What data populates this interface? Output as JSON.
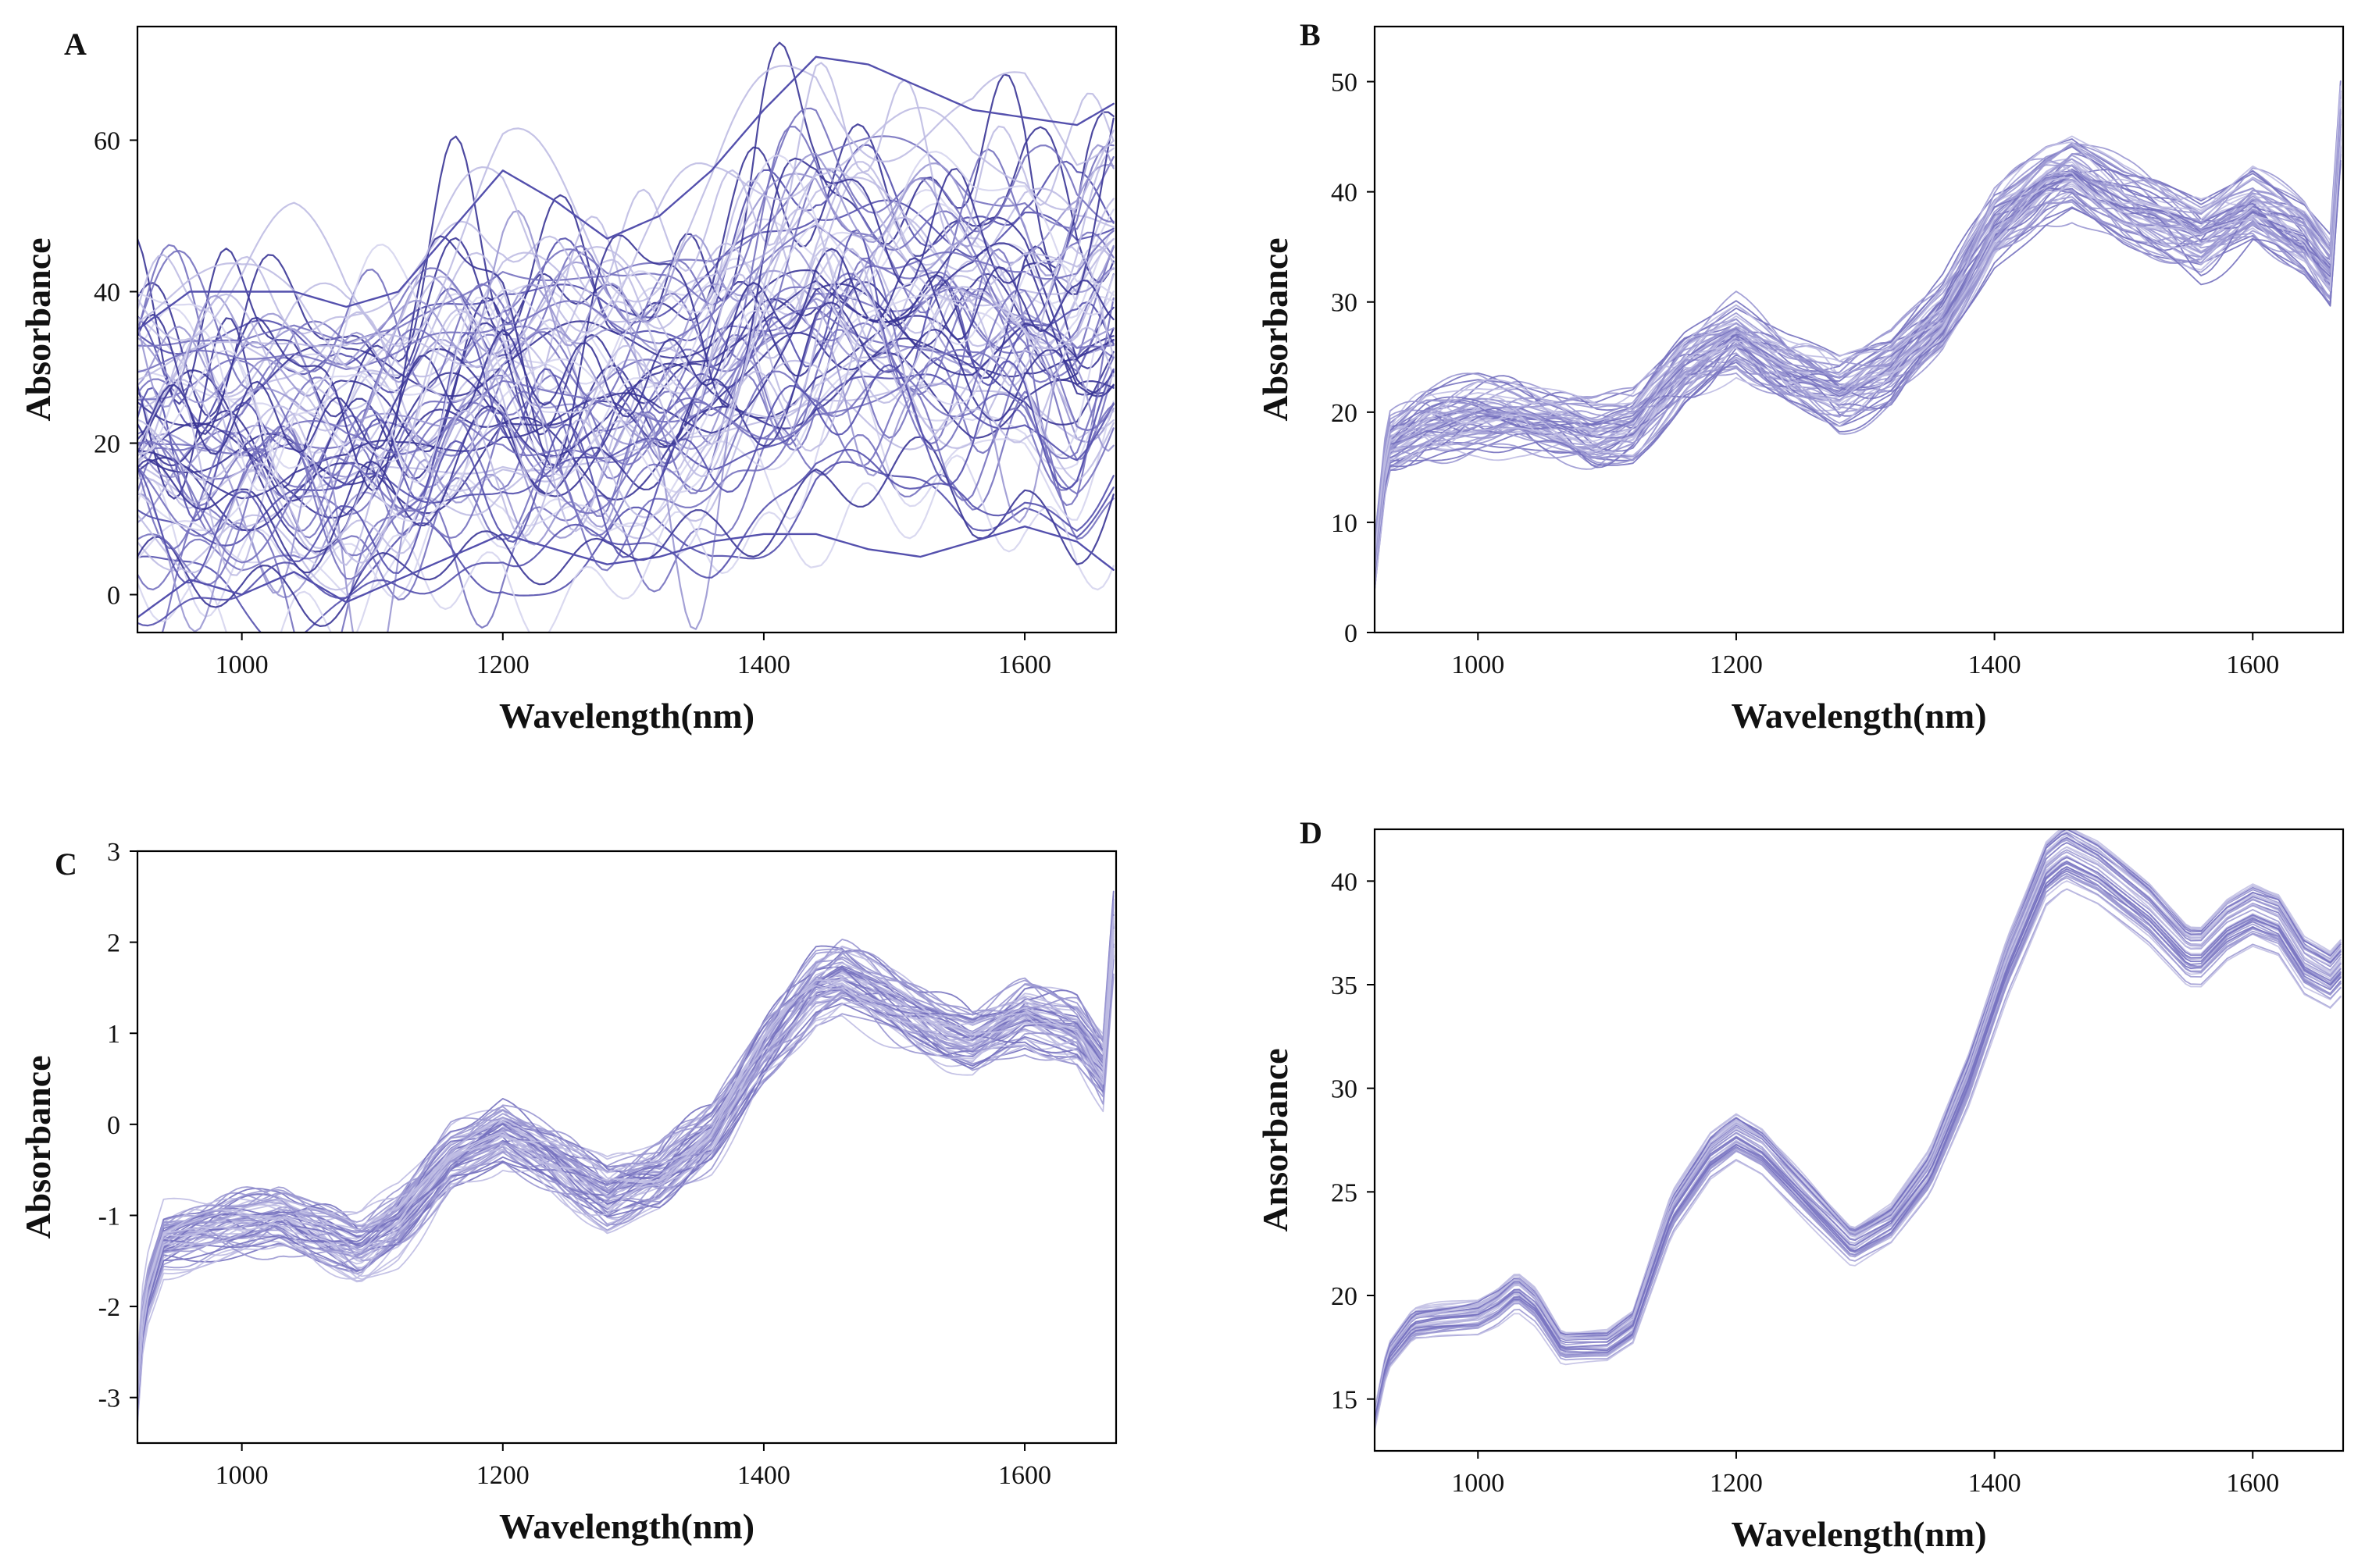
{
  "figure": {
    "line_colors": [
      "#3a3596",
      "#5450ad",
      "#7571bf",
      "#9a97d1",
      "#bfbde3",
      "#d6d5ee"
    ],
    "mean_color": "#8b87cb"
  },
  "chart_data": [
    {
      "type": "line",
      "panel": "A",
      "title": "",
      "xlabel": "Wavelength(nm)",
      "ylabel": "Absorbance",
      "xlim": [
        920,
        1670
      ],
      "ylim": [
        -5,
        75
      ],
      "xticks": [
        1000,
        1200,
        1400,
        1600
      ],
      "yticks": [
        0,
        20,
        40,
        60
      ],
      "x": [
        920,
        960,
        1000,
        1040,
        1080,
        1120,
        1160,
        1200,
        1240,
        1280,
        1320,
        1360,
        1400,
        1440,
        1480,
        1520,
        1560,
        1600,
        1640,
        1670
      ],
      "mean_curve": [
        20,
        20,
        19,
        20,
        18,
        20,
        24,
        28,
        26,
        24,
        25,
        28,
        34,
        40,
        38,
        36,
        34,
        37,
        33,
        38
      ],
      "spread": 17,
      "series_count": 70,
      "series_examples": [
        {
          "name": "top spectrum",
          "values": [
            35,
            40,
            40,
            40,
            38,
            40,
            48,
            56,
            52,
            47,
            50,
            56,
            64,
            71,
            70,
            67,
            64,
            63,
            62,
            65
          ]
        },
        {
          "name": "bottom spectrum",
          "values": [
            -3,
            2,
            0,
            3,
            -1,
            2,
            5,
            8,
            6,
            4,
            5,
            7,
            8,
            8,
            6,
            5,
            7,
            9,
            7,
            3
          ]
        }
      ]
    },
    {
      "type": "line",
      "panel": "B",
      "title": "",
      "xlabel": "Wavelength(nm)",
      "ylabel": "Absorbance",
      "xlim": [
        920,
        1670
      ],
      "ylim": [
        0,
        55
      ],
      "xticks": [
        1000,
        1200,
        1400,
        1600
      ],
      "yticks": [
        0,
        10,
        20,
        30,
        40,
        50
      ],
      "x": [
        920,
        930,
        960,
        1000,
        1030,
        1060,
        1090,
        1120,
        1160,
        1200,
        1240,
        1280,
        1320,
        1360,
        1400,
        1440,
        1460,
        1500,
        1540,
        1560,
        1600,
        1640,
        1660,
        1670
      ],
      "mean_curve": [
        6,
        17,
        19,
        20,
        20,
        19,
        18,
        19,
        24,
        27,
        24,
        22,
        24,
        29,
        37,
        41,
        42,
        39,
        37,
        36,
        39,
        36,
        33,
        50
      ],
      "spread": 2.5,
      "series_count": 60
    },
    {
      "type": "line",
      "panel": "C",
      "title": "",
      "xlabel": "Wavelength(nm)",
      "ylabel": "Absorbance",
      "xlim": [
        920,
        1670
      ],
      "ylim": [
        -3.5,
        3
      ],
      "xticks": [
        1000,
        1200,
        1400,
        1600
      ],
      "yticks": [
        -3,
        -2,
        -1,
        0,
        1,
        2,
        3
      ],
      "x": [
        920,
        925,
        940,
        970,
        1000,
        1030,
        1060,
        1090,
        1120,
        1160,
        1200,
        1240,
        1280,
        1320,
        1360,
        1400,
        1440,
        1460,
        1500,
        1540,
        1560,
        1600,
        1640,
        1660,
        1670
      ],
      "mean_curve": [
        -3.0,
        -2.0,
        -1.3,
        -1.2,
        -1.1,
        -1.0,
        -1.2,
        -1.4,
        -1.1,
        -0.4,
        -0.1,
        -0.4,
        -0.8,
        -0.6,
        -0.1,
        0.8,
        1.5,
        1.6,
        1.3,
        1.0,
        0.9,
        1.2,
        1.0,
        0.6,
        2.5
      ],
      "spread": 0.3,
      "series_count": 60
    },
    {
      "type": "line",
      "panel": "D",
      "title": "",
      "xlabel": "Wavelength(nm)",
      "ylabel": "Ansorbance",
      "xlim": [
        920,
        1670
      ],
      "ylim": [
        12.5,
        42.5
      ],
      "xticks": [
        1000,
        1200,
        1400,
        1600
      ],
      "yticks": [
        15,
        20,
        25,
        30,
        35,
        40
      ],
      "x": [
        920,
        930,
        950,
        970,
        1000,
        1015,
        1030,
        1045,
        1065,
        1100,
        1120,
        1150,
        1180,
        1200,
        1220,
        1250,
        1290,
        1320,
        1350,
        1380,
        1410,
        1440,
        1455,
        1480,
        1520,
        1550,
        1560,
        1580,
        1600,
        1620,
        1640,
        1660,
        1670
      ],
      "mean_curve": [
        14,
        17,
        18.6,
        18.8,
        19,
        19.5,
        20.3,
        19.5,
        17.5,
        17.6,
        18.5,
        24,
        26.8,
        27.7,
        27,
        25,
        22.4,
        23.5,
        26,
        30.5,
        36,
        40.5,
        41.3,
        40.5,
        38.5,
        36.5,
        36.5,
        37.8,
        38.5,
        38,
        36,
        35.3,
        36
      ],
      "spread": 0.6,
      "series_count": 40
    }
  ]
}
